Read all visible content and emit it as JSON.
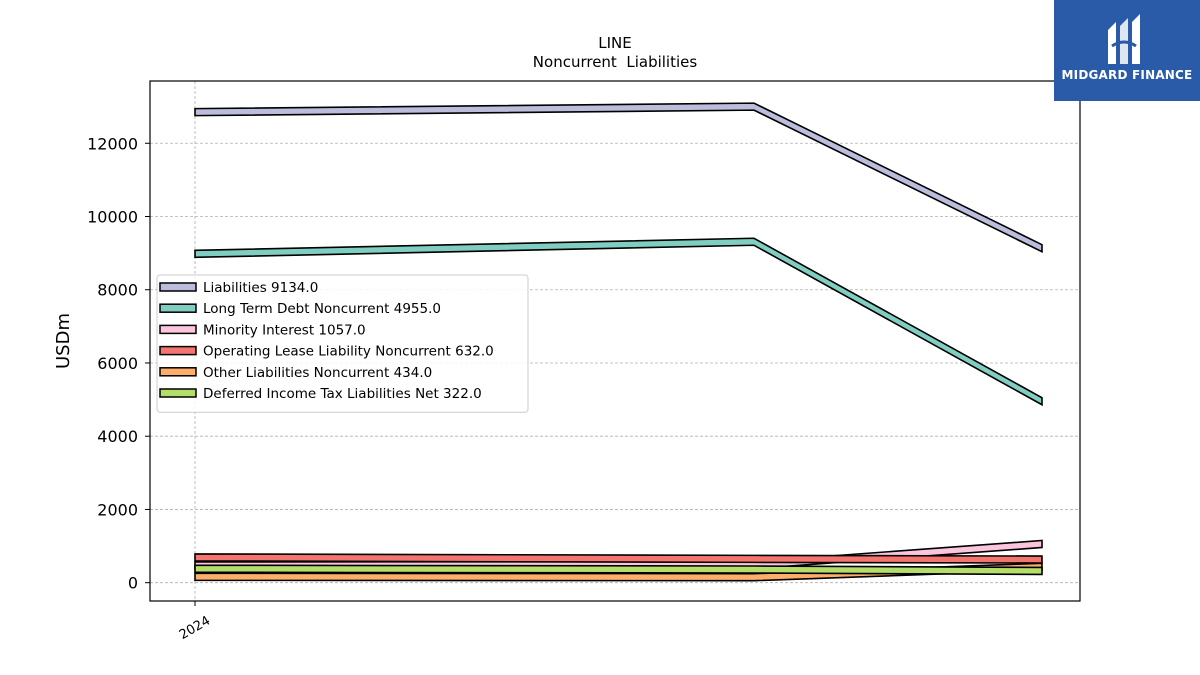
{
  "chart_data": {
    "type": "line",
    "title": "LINE",
    "subtitle": "Noncurrent  Liabilities",
    "xlabel": "",
    "ylabel": "USDm",
    "x": [
      "2024",
      "",
      ""
    ],
    "x_tick_labels": [
      "2024"
    ],
    "ylim": [
      -500,
      13700
    ],
    "y_ticks": [
      0,
      2000,
      4000,
      6000,
      8000,
      10000,
      12000
    ],
    "grid": true,
    "legend_position": "center-left",
    "series": [
      {
        "name": "Liabilities",
        "legend_label": "Liabilities  9134.0",
        "values": [
          12850,
          13000,
          9134
        ],
        "color": "#bcbddc"
      },
      {
        "name": "Long Term Debt Noncurrent",
        "legend_label": "Long Term Debt Noncurrent  4955.0",
        "values": [
          8980,
          9310,
          4955
        ],
        "color": "#80cdc1"
      },
      {
        "name": "Minority Interest",
        "legend_label": "Minority Interest  1057.0",
        "values": [
          470,
          480,
          1057
        ],
        "color": "#fcc5de"
      },
      {
        "name": "Operating Lease Liability Noncurrent",
        "legend_label": "Operating Lease Liability Noncurrent  632.0",
        "values": [
          690,
          650,
          632
        ],
        "color": "#f4756f"
      },
      {
        "name": "Other Liabilities Noncurrent",
        "legend_label": "Other Liabilities Noncurrent  434.0",
        "values": [
          160,
          150,
          434
        ],
        "color": "#fdae6b"
      },
      {
        "name": "Deferred Income Tax Liabilities Net",
        "legend_label": "Deferred Income Tax Liabilities Net  322.0",
        "values": [
          380,
          360,
          322
        ],
        "color": "#b5dd6a"
      }
    ]
  },
  "logo": {
    "text": "MIDGARD FINANCE",
    "color": "#2a5ba8"
  }
}
